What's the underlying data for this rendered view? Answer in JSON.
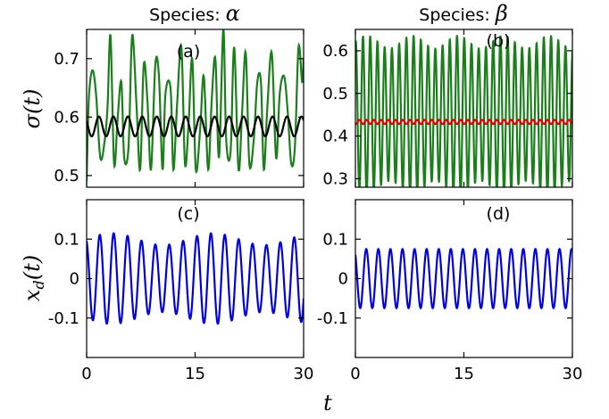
{
  "figure": {
    "xlabel": "t",
    "ylabel_top": "σ(t)",
    "ylabel_bottom_main": "x",
    "ylabel_bottom_sub": "d",
    "ylabel_bottom_tail": "(t)"
  },
  "chart_data": [
    {
      "type": "line",
      "panel_label": "(a)",
      "title_prefix": "Species: ",
      "title_symbol": "α",
      "xlim": [
        0,
        30
      ],
      "ylim": [
        0.48,
        0.75
      ],
      "xticks": [
        0,
        15,
        30
      ],
      "yticks": [
        0.5,
        0.6,
        0.7
      ],
      "ytick_labels": [
        "0.5",
        "0.6",
        "0.7"
      ],
      "show_xtick_labels": false,
      "series": [
        {
          "color": "#1a7f1a",
          "kind": "irregular",
          "x": [
            0,
            0.3,
            0.8,
            1.3,
            1.9,
            2.5,
            2.9,
            3.3,
            3.8,
            4.3,
            4.8,
            5.2,
            5.8,
            6.3,
            6.9,
            7.4,
            7.9,
            8.4,
            8.9,
            9.5,
            10.0,
            10.5,
            10.9,
            11.6,
            12.0,
            12.5,
            13.1,
            13.6,
            14.1,
            14.6,
            15.1,
            15.7,
            16.2,
            16.8,
            17.3,
            17.8,
            18.3,
            18.9,
            19.3,
            19.9,
            20.4,
            21.0,
            21.5,
            22.0,
            22.5,
            23.1,
            23.6,
            24.1,
            24.5,
            25.0,
            25.6,
            26.2,
            26.7,
            27.3,
            27.8,
            28.3,
            28.8,
            29.3,
            29.8,
            30.0
          ],
          "y": [
            0.49,
            0.63,
            0.68,
            0.64,
            0.53,
            0.56,
            0.62,
            0.74,
            0.52,
            0.6,
            0.66,
            0.53,
            0.55,
            0.74,
            0.62,
            0.51,
            0.69,
            0.63,
            0.51,
            0.69,
            0.67,
            0.51,
            0.64,
            0.65,
            0.51,
            0.62,
            0.72,
            0.52,
            0.59,
            0.7,
            0.51,
            0.58,
            0.67,
            0.51,
            0.63,
            0.7,
            0.53,
            0.75,
            0.56,
            0.54,
            0.72,
            0.51,
            0.61,
            0.71,
            0.52,
            0.56,
            0.66,
            0.66,
            0.51,
            0.62,
            0.71,
            0.53,
            0.64,
            0.67,
            0.61,
            0.52,
            0.55,
            0.72,
            0.66,
            0.7
          ]
        },
        {
          "color": "#000000",
          "kind": "sine",
          "mean": 0.584,
          "amplitude": 0.017,
          "period": 2.0,
          "phase": 0.4
        }
      ]
    },
    {
      "type": "line",
      "panel_label": "(b)",
      "title_prefix": "Species: ",
      "title_symbol": "β",
      "xlim": [
        0,
        30
      ],
      "ylim": [
        0.28,
        0.65
      ],
      "xticks": [
        0,
        15,
        30
      ],
      "yticks": [
        0.3,
        0.4,
        0.5,
        0.6
      ],
      "ytick_labels": [
        "0.3",
        "0.4",
        "0.5",
        "0.6"
      ],
      "show_xtick_labels": false,
      "series": [
        {
          "color": "#1a7f1a",
          "kind": "sine",
          "mean": 0.45,
          "amplitude": 0.17,
          "period": 1.0,
          "phase": 0.2,
          "amp_jitter": 0.015
        },
        {
          "color": "#e00000",
          "kind": "sine",
          "mean": 0.433,
          "amplitude": 0.005,
          "period": 1.0,
          "phase": 0.7
        }
      ]
    },
    {
      "type": "line",
      "panel_label": "(c)",
      "xlim": [
        0,
        30
      ],
      "ylim": [
        -0.2,
        0.2
      ],
      "xticks": [
        0,
        15,
        30
      ],
      "xtick_labels": [
        "0",
        "15",
        "30"
      ],
      "yticks": [
        0.1,
        0,
        -0.1
      ],
      "ytick_labels": [
        "0.1",
        "0",
        "-0.1"
      ],
      "show_xtick_labels": true,
      "series": [
        {
          "color": "#0000dd",
          "kind": "sine",
          "mean": 0.0,
          "amplitude": 0.1,
          "period": 1.92,
          "phase": 0.3,
          "amp_mod": 0.015,
          "amp_mod_period": 14
        }
      ]
    },
    {
      "type": "line",
      "panel_label": "(d)",
      "xlim": [
        0,
        30
      ],
      "ylim": [
        -0.2,
        0.2
      ],
      "xticks": [
        0,
        15,
        30
      ],
      "xtick_labels": [
        "0",
        "15",
        "30"
      ],
      "yticks": [
        0.1,
        0,
        -0.1
      ],
      "ytick_labels": [
        "0.1",
        "0",
        "-0.1"
      ],
      "show_xtick_labels": true,
      "series": [
        {
          "color": "#0000dd",
          "kind": "sine",
          "mean": 0.0,
          "amplitude": 0.075,
          "period": 1.67,
          "phase": 0.35
        }
      ]
    }
  ]
}
